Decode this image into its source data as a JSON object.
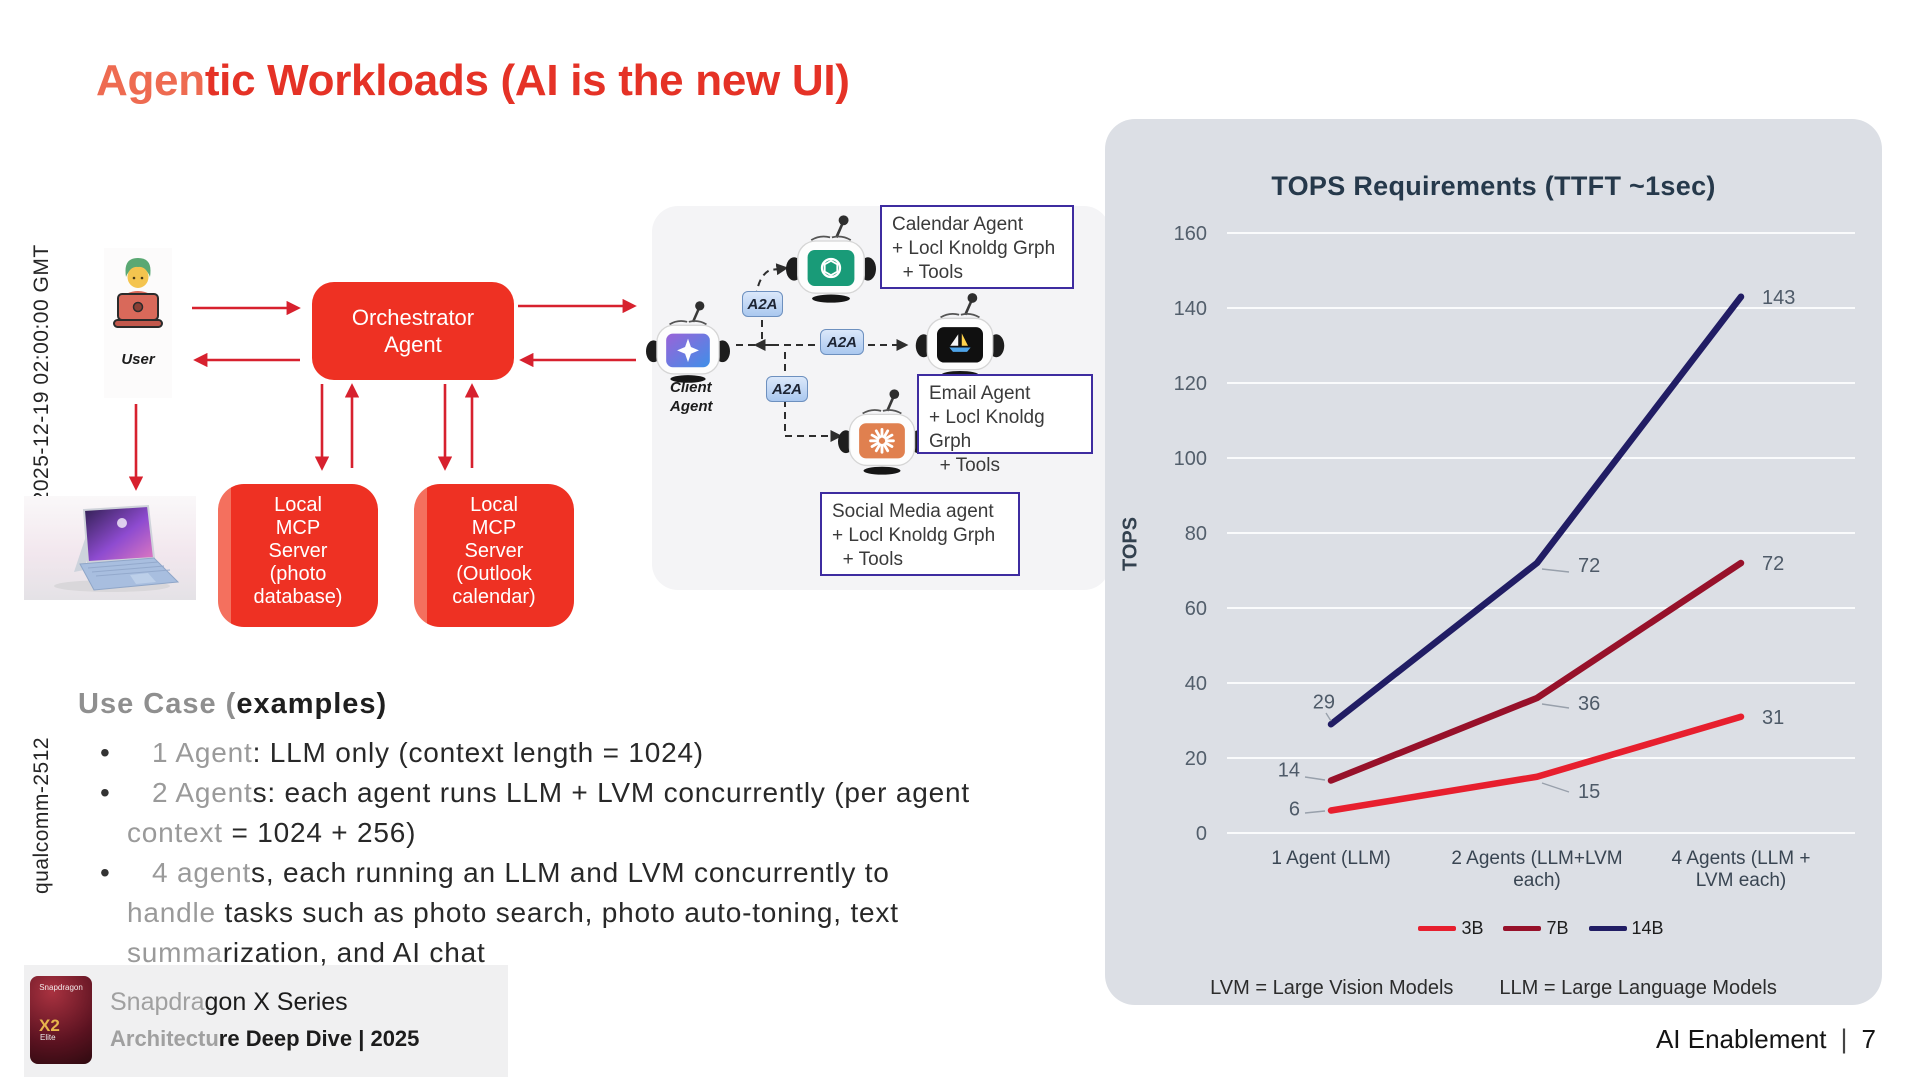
{
  "slide": {
    "title_accent": "Agen",
    "title_rest": "tic Workloads (AI is the new UI)"
  },
  "watermarks": {
    "timestamp": "\\ 2025-12-19 02:00:00 GMT",
    "tracking_id": "qualcomm-2512"
  },
  "diagram": {
    "user_label": "User",
    "orchestrator_label": "Orchestrator\nAgent",
    "mcp_photo_label": "Local\nMCP\nServer\n(photo\ndatabase)",
    "mcp_outlook_label": "Local\nMCP\nServer\n(Outlook\ncalendar)",
    "client_agent_label": "Client\nAgent",
    "a2a_badge": "A2A",
    "calendar_agent_box": "Calendar Agent\n+ Locl Knoldg Grph\n  + Tools",
    "email_agent_box": "Email Agent\n+ Locl Knoldg Grph\n  + Tools",
    "social_agent_box": "Social Media agent\n+ Locl Knoldg Grph\n  + Tools"
  },
  "use_case": {
    "heading_muted": "Use Case (",
    "heading_bold": "examples",
    "heading_close": ")",
    "lines": [
      {
        "bullet": "•",
        "muted": "1 Agent",
        "rest": ": LLM only (context length = 1024)"
      },
      {
        "bullet": "•",
        "muted": "2 Agent",
        "rest": "s: each agent runs LLM + LVM concurrently (per agent"
      },
      {
        "bullet": "",
        "muted": "context",
        "rest": " = 1024 + 256)"
      },
      {
        "bullet": "•",
        "muted": "4 agent",
        "rest": "s, each running an LLM and LVM concurrently to"
      },
      {
        "bullet": "",
        "muted": "handle",
        "rest": " tasks such as photo search, photo auto-toning, text"
      },
      {
        "bullet": "",
        "muted": "summa",
        "rest": "rization, and AI chat"
      }
    ]
  },
  "chart_data": {
    "type": "line",
    "title": "TOPS Requirements (TTFT ~1sec)",
    "ylabel": "TOPS",
    "ylim": [
      0,
      160
    ],
    "ytick_step": 20,
    "grid": true,
    "legend_position": "bottom",
    "panel_color": "#dcdfe5",
    "categories": [
      "1 Agent (LLM)",
      "2 Agents (LLM+LVM each)",
      "4 Agents (LLM + LVM each)"
    ],
    "series": [
      {
        "name": "3B",
        "color": "#e71f2e",
        "values": [
          6,
          15,
          31
        ]
      },
      {
        "name": "7B",
        "color": "#97112a",
        "values": [
          14,
          36,
          72
        ]
      },
      {
        "name": "14B",
        "color": "#211d64",
        "values": [
          29,
          72,
          143
        ]
      }
    ],
    "footnotes": [
      "LVM = Large Vision Models",
      "LLM = Large Language Models"
    ]
  },
  "footer": {
    "logo_brand": "Snapdragon",
    "logo_chip": "X2",
    "logo_tier": "Elite",
    "series_muted": "Snapdra",
    "series_rest": "gon X Series",
    "deck_muted": "Architectu",
    "deck_rest": "re Deep Dive | 2025",
    "right_label": "AI Enablement",
    "right_divider": "|",
    "page_number": "7"
  }
}
